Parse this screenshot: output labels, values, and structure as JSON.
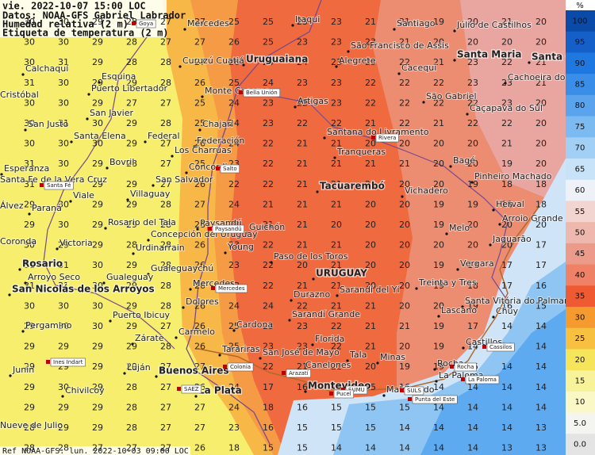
{
  "header": {
    "lines": [
      "vie. 2022-10-07 15:00 LOC",
      "Datos: NOAA-GFS  Gabriel Labrador",
      "Humedad relativa (2 m)",
      "Etiqueta de temperatura (2 m)"
    ]
  },
  "footer": "Ref NOAA-GFS: lun. 2022-10-03 09:00 LOC",
  "colorbar": {
    "unit": "%",
    "levels": [
      {
        "label": "100",
        "color": "#0a4aa8"
      },
      {
        "label": "95",
        "color": "#1460c8"
      },
      {
        "label": "90",
        "color": "#1e78e0"
      },
      {
        "label": "85",
        "color": "#3a8ee8"
      },
      {
        "label": "80",
        "color": "#5aa4ee"
      },
      {
        "label": "75",
        "color": "#7cbaf2"
      },
      {
        "label": "70",
        "color": "#a2cff5"
      },
      {
        "label": "65",
        "color": "#c8e2f8"
      },
      {
        "label": "60",
        "color": "#eef2f8"
      },
      {
        "label": "55",
        "color": "#f2d4d0"
      },
      {
        "label": "50",
        "color": "#efb8ae"
      },
      {
        "label": "45",
        "color": "#ec9a8a"
      },
      {
        "label": "40",
        "color": "#ef8266"
      },
      {
        "label": "35",
        "color": "#f05a32"
      },
      {
        "label": "30",
        "color": "#f59a2e"
      },
      {
        "label": "25",
        "color": "#f8c040"
      },
      {
        "label": "20",
        "color": "#f6e45a"
      },
      {
        "label": "15",
        "color": "#f8f29a"
      },
      {
        "label": "10",
        "color": "#fbf8c8"
      },
      {
        "label": "5.0",
        "color": "#f4f4f0"
      },
      {
        "label": "0.0",
        "color": "#e4e4e4"
      }
    ]
  },
  "grid": {
    "rows": [
      [
        30,
        30,
        29,
        28,
        27,
        27,
        25,
        25,
        23,
        23,
        21,
        21,
        19,
        20,
        21,
        20
      ],
      [
        30,
        30,
        29,
        28,
        27,
        27,
        26,
        25,
        23,
        23,
        23,
        21,
        20,
        20,
        20,
        20
      ],
      [
        30,
        31,
        29,
        28,
        28,
        27,
        26,
        24,
        24,
        23,
        23,
        22,
        21,
        23,
        22,
        21
      ],
      [
        31,
        30,
        29,
        29,
        28,
        26,
        25,
        24,
        23,
        23,
        22,
        22,
        22,
        23,
        23,
        21
      ],
      [
        30,
        30,
        29,
        27,
        27,
        25,
        24,
        23,
        22,
        23,
        22,
        22,
        22,
        22,
        23,
        20
      ],
      [
        30,
        31,
        30,
        29,
        28,
        25,
        24,
        23,
        22,
        22,
        21,
        22,
        21,
        22,
        22,
        20
      ],
      [
        30,
        30,
        30,
        29,
        27,
        26,
        24,
        22,
        21,
        21,
        20,
        20,
        20,
        20,
        21,
        20
      ],
      [
        31,
        30,
        29,
        28,
        27,
        25,
        23,
        22,
        21,
        21,
        21,
        21,
        20,
        20,
        19,
        20
      ],
      [
        31,
        31,
        29,
        29,
        27,
        26,
        22,
        22,
        21,
        21,
        21,
        20,
        20,
        19,
        18,
        18
      ],
      [
        29,
        30,
        29,
        29,
        28,
        27,
        24,
        21,
        21,
        21,
        20,
        20,
        19,
        19,
        18,
        18
      ],
      [
        29,
        30,
        29,
        29,
        28,
        28,
        23,
        21,
        21,
        20,
        20,
        20,
        19,
        20,
        20,
        20
      ],
      [
        30,
        29,
        29,
        28,
        28,
        26,
        23,
        22,
        21,
        21,
        20,
        20,
        20,
        20,
        20,
        17
      ],
      [
        31,
        31,
        30,
        29,
        28,
        26,
        23,
        22,
        20,
        21,
        20,
        20,
        19,
        17,
        17,
        17
      ],
      [
        31,
        31,
        30,
        29,
        28,
        26,
        23,
        22,
        21,
        21,
        20,
        20,
        19,
        18,
        17,
        16
      ],
      [
        30,
        30,
        30,
        29,
        28,
        26,
        24,
        24,
        22,
        21,
        21,
        20,
        20,
        19,
        16,
        15
      ],
      [
        29,
        30,
        30,
        29,
        27,
        26,
        25,
        23,
        23,
        22,
        21,
        21,
        19,
        17,
        14,
        14
      ],
      [
        29,
        29,
        29,
        29,
        28,
        26,
        25,
        23,
        23,
        22,
        21,
        20,
        19,
        14,
        14,
        14
      ],
      [
        29,
        29,
        29,
        29,
        27,
        27,
        24,
        22,
        21,
        21,
        20,
        19,
        19,
        15,
        14,
        14
      ],
      [
        29,
        30,
        29,
        28,
        27,
        26,
        24,
        17,
        16,
        16,
        15,
        16,
        14,
        14,
        14,
        14
      ],
      [
        29,
        29,
        29,
        28,
        27,
        27,
        24,
        18,
        16,
        15,
        15,
        15,
        14,
        14,
        14,
        14
      ],
      [
        28,
        29,
        29,
        28,
        27,
        27,
        23,
        16,
        15,
        15,
        15,
        14,
        14,
        14,
        14,
        13
      ],
      [
        28,
        28,
        27,
        27,
        27,
        26,
        18,
        15,
        15,
        14,
        14,
        14,
        14,
        14,
        13,
        13
      ]
    ]
  },
  "places": [
    "Mercedes",
    "Itaqui",
    "Santiago",
    "Júlio de Castilhos",
    "São Francisco de Assis",
    "Curuzú Cuatiá",
    "Uruguaiana",
    "Alegrete",
    "Cacequi",
    "Santa Maria",
    "Santa Cruz",
    "Cachoeira do Sul",
    "Calchaquí",
    "Esquina",
    "Puerto Libertador",
    "Monte Caseros",
    "São Gabriel",
    "Caçapava do Sul",
    "Cristóbal",
    "San Javier",
    "Artigas",
    "Chajarí",
    "Santana do Livramento",
    "San Justo",
    "Santa Elena",
    "Federal",
    "Federación",
    "Los Charruas",
    "Tranqueras",
    "Bagé",
    "Bovril",
    "Concordia",
    "Pinheiro Machado",
    "Esperanza",
    "Santa Fe de la Vera Cruz",
    "San Salvador",
    "Tacuarembó",
    "Vichadero",
    "Viale",
    "Villaguay",
    "Herval",
    "Arroio Grande",
    "Álvez",
    "Paraná",
    "Melo",
    "Rosario del Tala",
    "Paysandú",
    "Guichón",
    "Concepción del Uruguay",
    "Jaguarão",
    "Coronda",
    "Victoria",
    "Urdinarrain",
    "Young",
    "Paso de los Toros",
    "Gualeguaychú",
    "Rosario",
    "Vergara",
    "URUGUAY",
    "Arroyo Seco",
    "Gualeguay",
    "Mercedes",
    "Treinta y Tres",
    "San Nicolás de los Arroyos",
    "Durazno",
    "Sarandí del Yí",
    "Santa Vitória do Palmar",
    "Dolores",
    "Lascano",
    "Chuy",
    "Puerto Ibicuy",
    "Sarandí Grande",
    "Pergamino",
    "Cardona",
    "Carmelo",
    "Zárate",
    "Florida",
    "Castillos",
    "Tarariras",
    "San José de Mayo",
    "Tala",
    "Minas",
    "Junín",
    "Luján",
    "Buenos Aires",
    "Canelones",
    "Rocha",
    "La Paloma",
    "Montevideo",
    "Maldonado",
    "Chivilcoy",
    "La Plata",
    "Nueve de Julio"
  ],
  "stations": [
    "Goya",
    "Bella Unión",
    "Rivera",
    "Salto",
    "Santa Fé",
    "Paysandú",
    "Mercedes",
    "Colonia",
    "Arazatí",
    "Ines Indart",
    "Cassilos",
    "Rocha",
    "La Paloma",
    "SUMU",
    "Pucel",
    "SULS",
    "Punta del Este",
    "SAEZ"
  ]
}
